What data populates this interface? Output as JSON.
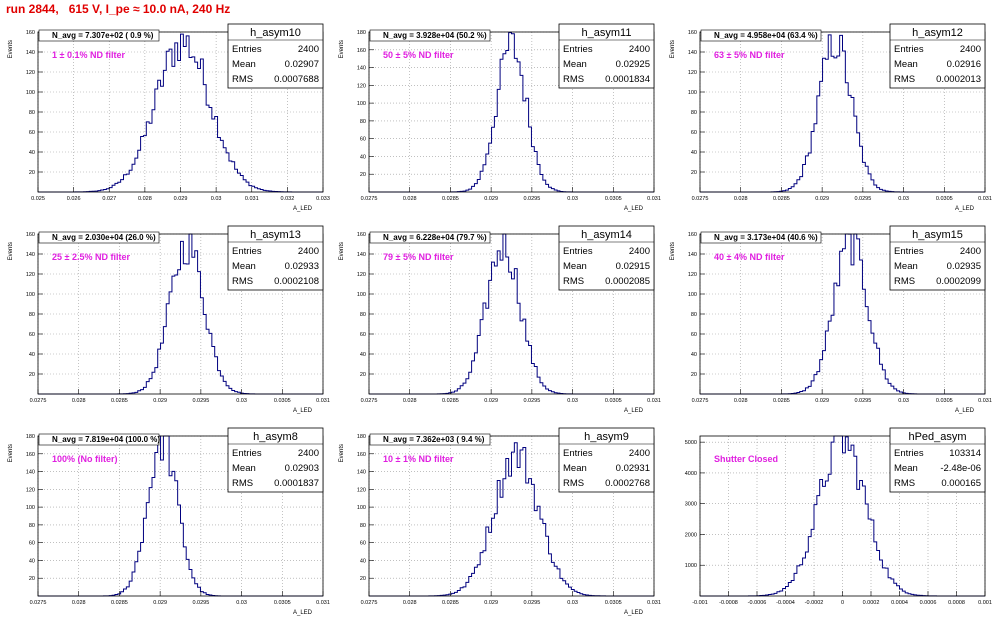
{
  "page": {
    "title": "run 2844,   615 V, I_pe ≈ 10.0 nA, 240 Hz"
  },
  "chart_data": [
    {
      "type": "bar",
      "histogram": "h_asym10",
      "stats": {
        "entries_label": "Entries",
        "entries": "2400",
        "mean_label": "Mean",
        "mean": "0.02907",
        "rms_label": "RMS",
        "rms": "0.0007688"
      },
      "navg": "N_avg = 7.307e+02 ( 0.9 %)",
      "filter": "1 ± 0.1% ND filter",
      "ylabel": "Events",
      "xlabel": "A_LED",
      "xlim": [
        0.025,
        0.033
      ],
      "ylim": [
        0,
        160
      ],
      "xticks": [
        "0.025",
        "0.026",
        "0.027",
        "0.028",
        "0.029",
        "0.03",
        "0.031",
        "0.032",
        "0.033"
      ],
      "yticks": [
        "20",
        "40",
        "60",
        "80",
        "100",
        "120",
        "140",
        "160"
      ],
      "dist": {
        "mean": 0.02907,
        "sigma": 0.0007688,
        "peak": 150
      },
      "grid": true
    },
    {
      "type": "bar",
      "histogram": "h_asym11",
      "stats": {
        "entries_label": "Entries",
        "entries": "2400",
        "mean_label": "Mean",
        "mean": "0.02925",
        "rms_label": "RMS",
        "rms": "0.0001834"
      },
      "navg": "N_avg = 3.928e+04 (50.2 %)",
      "filter": "50 ± 5% ND filter",
      "ylabel": "Events",
      "xlabel": "A_LED",
      "xlim": [
        0.0275,
        0.031
      ],
      "ylim": [
        0,
        180
      ],
      "xticks": [
        "0.0275",
        "0.028",
        "0.0285",
        "0.029",
        "0.0295",
        "0.03",
        "0.0305",
        "0.031"
      ],
      "yticks": [
        "20",
        "40",
        "60",
        "80",
        "100",
        "120",
        "140",
        "160",
        "180"
      ],
      "dist": {
        "mean": 0.02925,
        "sigma": 0.0001834,
        "peak": 165
      },
      "grid": true
    },
    {
      "type": "bar",
      "histogram": "h_asym12",
      "stats": {
        "entries_label": "Entries",
        "entries": "2400",
        "mean_label": "Mean",
        "mean": "0.02916",
        "rms_label": "RMS",
        "rms": "0.0002013"
      },
      "navg": "N_avg = 4.958e+04 (63.4 %)",
      "filter": "63 ± 5% ND filter",
      "ylabel": "Events",
      "xlabel": "A_LED",
      "xlim": [
        0.0275,
        0.031
      ],
      "ylim": [
        0,
        160
      ],
      "xticks": [
        "0.0275",
        "0.028",
        "0.0285",
        "0.029",
        "0.0295",
        "0.03",
        "0.0305",
        "0.031"
      ],
      "yticks": [
        "20",
        "40",
        "60",
        "80",
        "100",
        "120",
        "140",
        "160"
      ],
      "dist": {
        "mean": 0.02916,
        "sigma": 0.0002013,
        "peak": 150
      },
      "grid": true
    },
    {
      "type": "bar",
      "histogram": "h_asym13",
      "stats": {
        "entries_label": "Entries",
        "entries": "2400",
        "mean_label": "Mean",
        "mean": "0.02933",
        "rms_label": "RMS",
        "rms": "0.0002108"
      },
      "navg": "N_avg = 2.030e+04 (26.0 %)",
      "filter": "25 ± 2.5% ND filter",
      "ylabel": "Events",
      "xlabel": "A_LED",
      "xlim": [
        0.0275,
        0.031
      ],
      "ylim": [
        0,
        160
      ],
      "xticks": [
        "0.0275",
        "0.028",
        "0.0285",
        "0.029",
        "0.0295",
        "0.03",
        "0.0305",
        "0.031"
      ],
      "yticks": [
        "20",
        "40",
        "60",
        "80",
        "100",
        "120",
        "140",
        "160"
      ],
      "dist": {
        "mean": 0.02933,
        "sigma": 0.0002108,
        "peak": 150
      },
      "grid": true
    },
    {
      "type": "bar",
      "histogram": "h_asym14",
      "stats": {
        "entries_label": "Entries",
        "entries": "2400",
        "mean_label": "Mean",
        "mean": "0.02915",
        "rms_label": "RMS",
        "rms": "0.0002085"
      },
      "navg": "N_avg = 6.228e+04 (79.7 %)",
      "filter": "79 ± 5% ND filter",
      "ylabel": "Events",
      "xlabel": "A_LED",
      "xlim": [
        0.0275,
        0.031
      ],
      "ylim": [
        0,
        160
      ],
      "xticks": [
        "0.0275",
        "0.028",
        "0.0285",
        "0.029",
        "0.0295",
        "0.03",
        "0.0305",
        "0.031"
      ],
      "yticks": [
        "20",
        "40",
        "60",
        "80",
        "100",
        "120",
        "140",
        "160"
      ],
      "dist": {
        "mean": 0.02915,
        "sigma": 0.0002085,
        "peak": 150
      },
      "grid": true
    },
    {
      "type": "bar",
      "histogram": "h_asym15",
      "stats": {
        "entries_label": "Entries",
        "entries": "2400",
        "mean_label": "Mean",
        "mean": "0.02935",
        "rms_label": "RMS",
        "rms": "0.0002099"
      },
      "navg": "N_avg = 3.173e+04 (40.6 %)",
      "filter": "40 ± 4% ND filter",
      "ylabel": "Events",
      "xlabel": "A_LED",
      "xlim": [
        0.0275,
        0.031
      ],
      "ylim": [
        0,
        160
      ],
      "xticks": [
        "0.0275",
        "0.028",
        "0.0285",
        "0.029",
        "0.0295",
        "0.03",
        "0.0305",
        "0.031"
      ],
      "yticks": [
        "20",
        "40",
        "60",
        "80",
        "100",
        "120",
        "140",
        "160"
      ],
      "dist": {
        "mean": 0.02935,
        "sigma": 0.0002099,
        "peak": 150
      },
      "grid": true
    },
    {
      "type": "bar",
      "histogram": "h_asym8",
      "stats": {
        "entries_label": "Entries",
        "entries": "2400",
        "mean_label": "Mean",
        "mean": "0.02903",
        "rms_label": "RMS",
        "rms": "0.0001837"
      },
      "navg": "N_avg = 7.819e+04 (100.0 %)",
      "filter": "100% (No filter)",
      "ylabel": "Events",
      "xlabel": "A_LED",
      "xlim": [
        0.0275,
        0.031
      ],
      "ylim": [
        0,
        180
      ],
      "xticks": [
        "0.0275",
        "0.028",
        "0.0285",
        "0.029",
        "0.0295",
        "0.03",
        "0.0305",
        "0.031"
      ],
      "yticks": [
        "20",
        "40",
        "60",
        "80",
        "100",
        "120",
        "140",
        "160",
        "180"
      ],
      "dist": {
        "mean": 0.02903,
        "sigma": 0.0001837,
        "peak": 175
      },
      "grid": true
    },
    {
      "type": "bar",
      "histogram": "h_asym9",
      "stats": {
        "entries_label": "Entries",
        "entries": "2400",
        "mean_label": "Mean",
        "mean": "0.02931",
        "rms_label": "RMS",
        "rms": "0.0002768"
      },
      "navg": "N_avg = 7.362e+03 ( 9.4 %)",
      "filter": "10 ± 1% ND filter",
      "ylabel": "Events",
      "xlabel": "A_LED",
      "xlim": [
        0.0275,
        0.031
      ],
      "ylim": [
        0,
        180
      ],
      "xticks": [
        "0.0275",
        "0.028",
        "0.0285",
        "0.029",
        "0.0295",
        "0.03",
        "0.0305",
        "0.031"
      ],
      "yticks": [
        "20",
        "40",
        "60",
        "80",
        "100",
        "120",
        "140",
        "160",
        "180"
      ],
      "dist": {
        "mean": 0.02931,
        "sigma": 0.0002768,
        "peak": 160
      },
      "grid": true
    },
    {
      "type": "bar",
      "histogram": "hPed_asym",
      "stats": {
        "entries_label": "Entries",
        "entries": "103314",
        "mean_label": "Mean",
        "mean": "-2.48e-06",
        "rms_label": "RMS",
        "rms": "0.000165"
      },
      "navg": "",
      "filter": "Shutter Closed",
      "ylabel": "",
      "xlabel": "",
      "xlim": [
        -0.001,
        0.001
      ],
      "ylim": [
        0,
        5200
      ],
      "xticks": [
        "-0.001",
        "-0.0008",
        "-0.0006",
        "-0.0004",
        "-0.0002",
        "0",
        "0.0002",
        "0.0004",
        "0.0006",
        "0.0008",
        "0.001"
      ],
      "yticks": [
        "1000",
        "2000",
        "3000",
        "4000",
        "5000"
      ],
      "dist": {
        "mean": -2.48e-06,
        "sigma": 0.000165,
        "peak": 5050
      },
      "grid": true
    }
  ]
}
